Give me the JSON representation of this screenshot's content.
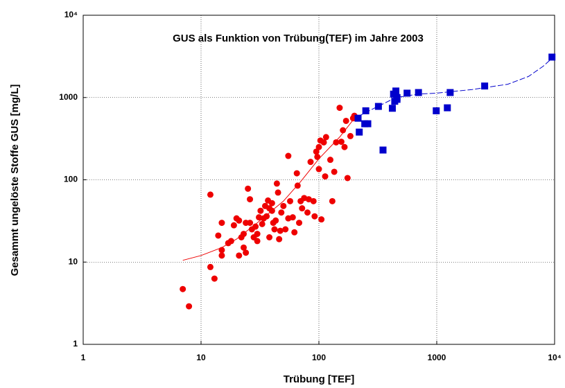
{
  "chart_data": {
    "type": "scatter",
    "title": "GUS als Funktion von Trübung(TEF) im Jahre 2003",
    "x_label": "Trübung [TEF]",
    "y_label": "Gesammt ungelöste Stoffe GUS [mg/L]",
    "log_x": true,
    "log_y": true,
    "grid": true,
    "xlim": [
      1,
      10000
    ],
    "ylim": [
      1,
      10000
    ],
    "xticks": [
      1,
      10,
      100,
      1000,
      {
        "value": 10000,
        "label": "10⁴"
      }
    ],
    "yticks": [
      1,
      10,
      100,
      1000,
      {
        "value": 10000,
        "label": "10⁴"
      }
    ],
    "series": [
      {
        "color": "#ee0000",
        "marker": "circle",
        "x": [
          7.0,
          7.9,
          12,
          12,
          13,
          14,
          15,
          15,
          15,
          17,
          18,
          19,
          20,
          21,
          21,
          22,
          23,
          23,
          24,
          24,
          25,
          26,
          26,
          27,
          28,
          29,
          30,
          30,
          31,
          32,
          33,
          34,
          35,
          36,
          37,
          38,
          38,
          40,
          40,
          41,
          42,
          43,
          44,
          45,
          46,
          47,
          48,
          50,
          52,
          55,
          55,
          57,
          60,
          62,
          65,
          66,
          68,
          70,
          72,
          75,
          80,
          82,
          85,
          90,
          92,
          95,
          97,
          100,
          100,
          103,
          105,
          110,
          113,
          115,
          125,
          130,
          135,
          140,
          150,
          155,
          160,
          165,
          170,
          175,
          185,
          195,
          200
        ],
        "values": [
          4.7,
          2.9,
          66,
          8.7,
          6.3,
          21,
          30,
          14,
          12,
          17,
          18,
          28,
          34,
          32,
          12,
          20,
          15,
          22,
          13,
          30,
          78,
          58,
          30,
          25,
          20,
          27,
          18,
          22,
          35,
          42,
          29,
          34,
          48,
          36,
          56,
          20,
          45,
          42,
          52,
          30,
          25,
          32,
          90,
          70,
          19,
          24,
          40,
          48,
          25,
          195,
          34,
          55,
          35,
          23,
          120,
          85,
          30,
          55,
          45,
          60,
          40,
          58,
          165,
          55,
          36,
          220,
          190,
          250,
          135,
          300,
          33,
          285,
          110,
          330,
          175,
          55,
          125,
          285,
          750,
          290,
          400,
          250,
          520,
          105,
          340,
          560,
          600
        ]
      },
      {
        "color": "#0000cc",
        "marker": "square",
        "x": [
          215,
          220,
          245,
          250,
          260,
          320,
          350,
          420,
          430,
          440,
          450,
          460,
          460,
          560,
          700,
          990,
          1230,
          1300,
          2550,
          9500
        ],
        "values": [
          560,
          380,
          480,
          690,
          480,
          780,
          230,
          740,
          1100,
          900,
          1200,
          950,
          1000,
          1130,
          1150,
          690,
          750,
          1150,
          1380,
          3100
        ]
      },
      {
        "color": "#ee0000",
        "marker": "none",
        "dash": false,
        "x": [
          7,
          10,
          15,
          20,
          30,
          50,
          70,
          100,
          150,
          200
        ],
        "values": [
          10.5,
          12,
          15,
          19,
          30,
          55,
          95,
          180,
          330,
          560
        ]
      },
      {
        "color": "#0000cc",
        "marker": "none",
        "dash": true,
        "x": [
          215,
          300,
          450,
          700,
          1000,
          2000,
          4000,
          6000,
          8000,
          10000
        ],
        "values": [
          590,
          750,
          1000,
          1100,
          1130,
          1250,
          1450,
          1800,
          2400,
          3200
        ]
      }
    ]
  }
}
